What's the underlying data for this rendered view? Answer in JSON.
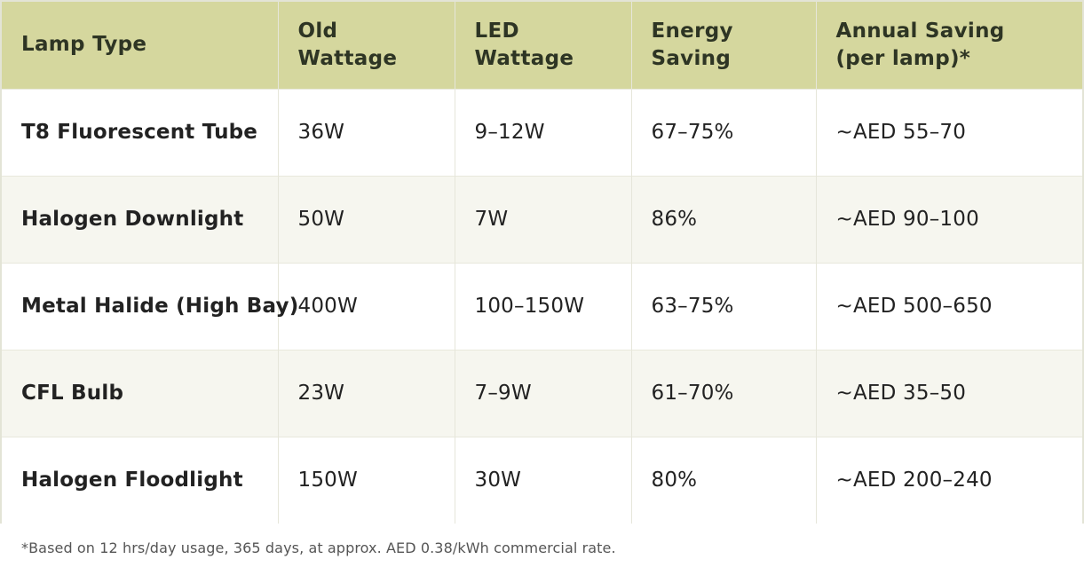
{
  "table": {
    "headers": [
      "Lamp Type",
      "Old\nWattage",
      "LED\nWattage",
      "Energy\nSaving",
      "Annual Saving\n(per lamp)*"
    ],
    "header_lines": [
      [
        "Lamp Type"
      ],
      [
        "Old",
        "Wattage"
      ],
      [
        "LED",
        "Wattage"
      ],
      [
        "Energy",
        "Saving"
      ],
      [
        "Annual Saving",
        "(per lamp)*"
      ]
    ],
    "rows": [
      {
        "lamp_type": "T8 Fluorescent Tube",
        "old_wattage": "36W",
        "led_wattage": "9–12W",
        "energy_saving": "67–75%",
        "annual_saving": "~AED 55–70"
      },
      {
        "lamp_type": "Halogen Downlight",
        "old_wattage": "50W",
        "led_wattage": "7W",
        "energy_saving": "86%",
        "annual_saving": "~AED 90–100"
      },
      {
        "lamp_type": "Metal Halide (High Bay)",
        "old_wattage": "400W",
        "led_wattage": "100–150W",
        "energy_saving": "63–75%",
        "annual_saving": "~AED 500–650"
      },
      {
        "lamp_type": "CFL Bulb",
        "old_wattage": "23W",
        "led_wattage": "7–9W",
        "energy_saving": "61–70%",
        "annual_saving": "~AED 35–50"
      },
      {
        "lamp_type": "Halogen Floodlight",
        "old_wattage": "150W",
        "led_wattage": "30W",
        "energy_saving": "80%",
        "annual_saving": "~AED 200–240"
      }
    ]
  },
  "footnote": "*Based on 12 hrs/day usage, 365 days, at approx. AED 0.38/kWh commercial rate.",
  "colors": {
    "header_bg": "#d5d79e",
    "header_text": "#2e3524",
    "row_alt_bg": "#f6f6ef"
  }
}
